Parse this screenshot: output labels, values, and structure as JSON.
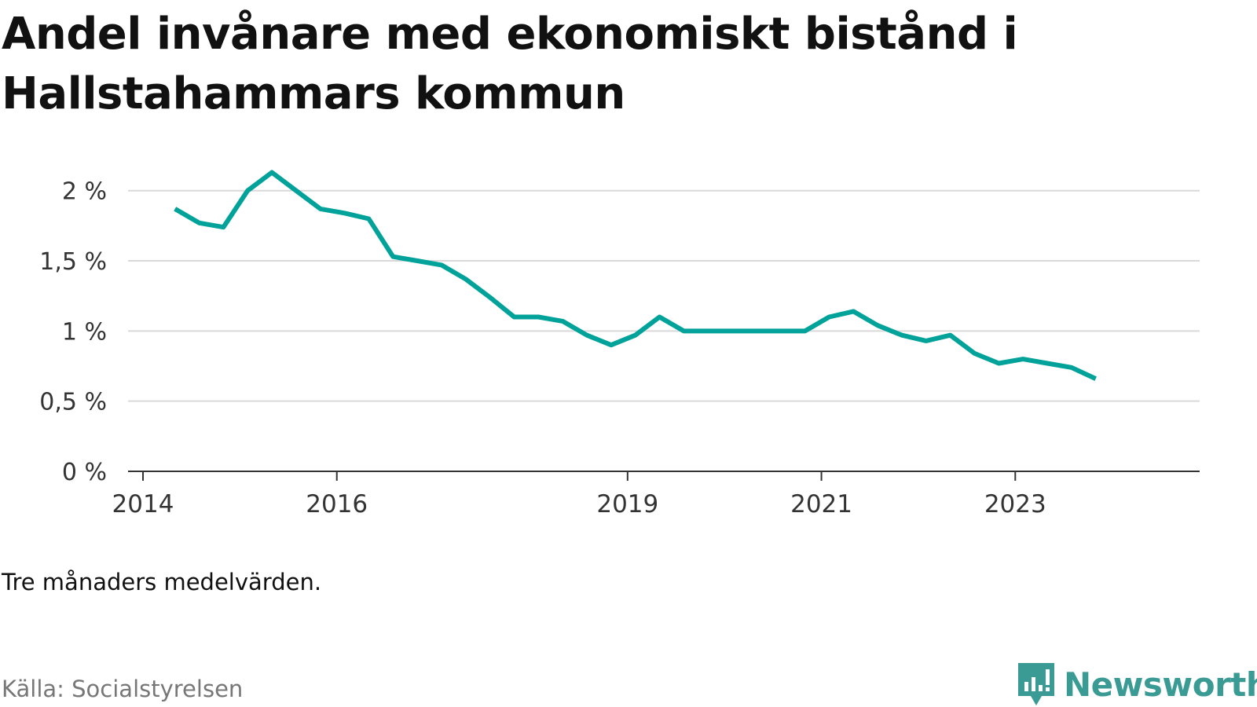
{
  "title": "Andel invånare med ekonomiskt bistånd i Hallstahammars kommun",
  "note": "Tre månaders medelvärden.",
  "source": "Källa: Socialstyrelsen",
  "brand": {
    "name": "Newsworthy",
    "color": "#3a9a94"
  },
  "chart_data": {
    "type": "line",
    "title": "Andel invånare med ekonomiskt bistånd i Hallstahammars kommun",
    "xlabel": "",
    "ylabel": "",
    "ylim": [
      0,
      2.2
    ],
    "xlim": [
      2014.0,
      2024.4
    ],
    "grid": true,
    "color": "#00a29a",
    "y_ticks": [
      {
        "value": 0,
        "label": "0 %"
      },
      {
        "value": 0.5,
        "label": "0,5 %"
      },
      {
        "value": 1,
        "label": "1 %"
      },
      {
        "value": 1.5,
        "label": "1,5 %"
      },
      {
        "value": 2,
        "label": "2 %"
      }
    ],
    "x_ticks": [
      {
        "value": 2014,
        "label": "2014"
      },
      {
        "value": 2016,
        "label": "2016"
      },
      {
        "value": 2019,
        "label": "2019"
      },
      {
        "value": 2021,
        "label": "2021"
      },
      {
        "value": 2023,
        "label": "2023"
      }
    ],
    "series": [
      {
        "x": [
          2014.33,
          2014.58,
          2014.83,
          2015.08,
          2015.33,
          2015.58,
          2015.83,
          2016.08,
          2016.33,
          2016.58,
          2016.83,
          2017.08,
          2017.33,
          2017.58,
          2017.83,
          2018.08,
          2018.33,
          2018.58,
          2018.83,
          2019.08,
          2019.33,
          2019.58,
          2019.83,
          2020.08,
          2020.33,
          2020.58,
          2020.83,
          2021.08,
          2021.33,
          2021.58,
          2021.83,
          2022.08,
          2022.33,
          2022.58,
          2022.83,
          2023.08,
          2023.33,
          2023.58,
          2023.83
        ],
        "y": [
          1.87,
          1.77,
          1.74,
          2.0,
          2.13,
          2.0,
          1.87,
          1.84,
          1.8,
          1.53,
          1.5,
          1.47,
          1.37,
          1.24,
          1.1,
          1.1,
          1.07,
          0.97,
          0.9,
          0.97,
          1.1,
          1.0,
          1.0,
          1.0,
          1.0,
          1.0,
          1.0,
          1.1,
          1.14,
          1.04,
          0.97,
          0.93,
          0.97,
          0.84,
          0.77,
          0.8,
          0.77,
          0.74,
          0.66
        ]
      }
    ]
  }
}
